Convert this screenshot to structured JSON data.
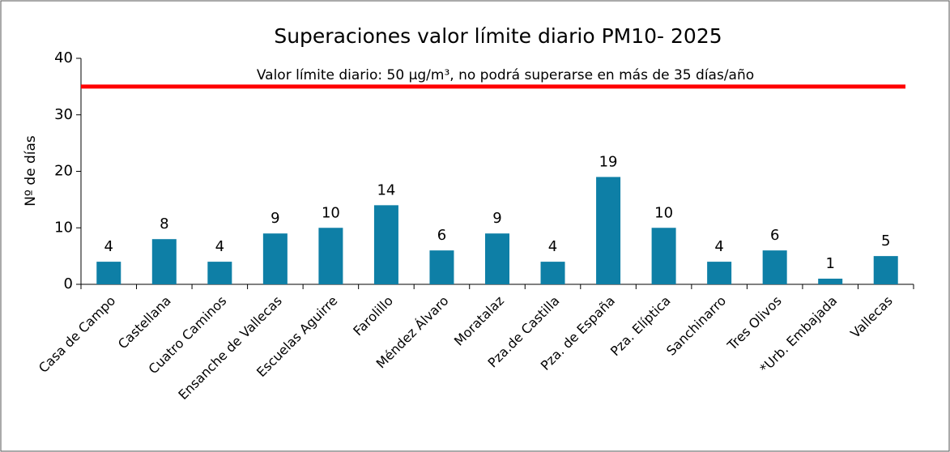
{
  "chart_data": {
    "type": "bar",
    "title": "Superaciones valor límite diario PM10- 2025",
    "y_label": "Nº de días",
    "categories": [
      "Casa de Campo",
      "Castellana",
      "Cuatro Caminos",
      "Ensanche de Vallecas",
      "Escuelas Aguirre",
      "Farolillo",
      "Méndez Álvaro",
      "Moratalaz",
      "Pza.de Castilla",
      "Pza. de España",
      "Pza. Elíptica",
      "Sanchinarro",
      "Tres Olivos",
      "*Urb. Embajada",
      "Vallecas"
    ],
    "values": [
      4,
      8,
      4,
      9,
      10,
      14,
      6,
      9,
      4,
      19,
      10,
      4,
      6,
      1,
      5
    ],
    "color": "#0e7fa6",
    "ylim": [
      0,
      40
    ],
    "yticks": [
      0,
      10,
      20,
      30,
      40
    ],
    "reference_line": {
      "value": 35,
      "color": "#ff0000",
      "label": "Valor límite diario: 50 µg/m³, no podrá superarse en más de 35 días/año"
    }
  }
}
